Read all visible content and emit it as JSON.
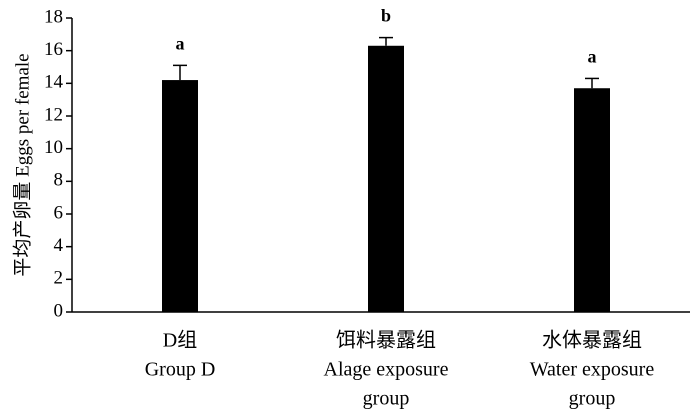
{
  "chart_data": {
    "type": "bar",
    "y_label": "平均产卵量 Eggs per female",
    "categories": [
      [
        "D组",
        "Group D"
      ],
      [
        "饵料暴露组",
        "Alage exposure",
        "group"
      ],
      [
        "水体暴露组",
        "Water exposure",
        "group"
      ]
    ],
    "values": [
      14.2,
      16.3,
      13.7
    ],
    "errors": [
      0.9,
      0.5,
      0.6
    ],
    "annotations": [
      "a",
      "b",
      "a"
    ],
    "color": "#000000",
    "ylim": [
      0,
      18
    ],
    "yticks": [
      0,
      2,
      4,
      6,
      8,
      10,
      12,
      14,
      16,
      18
    ],
    "grid": false
  }
}
